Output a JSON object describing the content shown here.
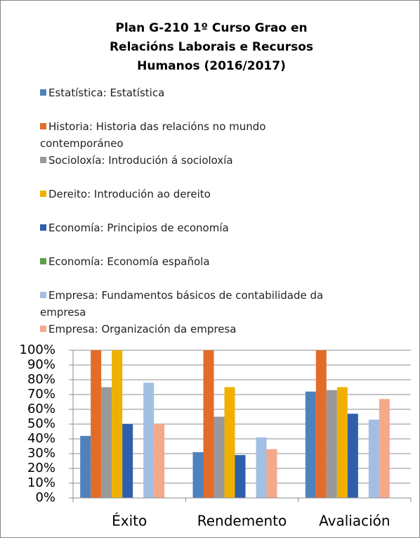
{
  "chart_data": {
    "type": "bar",
    "title": "Plan G-210 1º Curso Grao en Relacións Laborais e Recursos Humanos (2016/2017)",
    "categories": [
      "Éxito",
      "Rendemento",
      "Avaliación"
    ],
    "series": [
      {
        "name": "Estatística: Estatística",
        "color": "#4f81bd",
        "values": [
          42,
          31,
          72
        ]
      },
      {
        "name": "Historia: Historia das relacións no mundo contemporáneo",
        "color": "#e36c2a",
        "values": [
          100,
          100,
          100
        ]
      },
      {
        "name": "Socioloxía: Introdución á socioloxía",
        "color": "#999999",
        "values": [
          75,
          55,
          73
        ]
      },
      {
        "name": "Dereito: Introdución ao dereito",
        "color": "#f0b000",
        "values": [
          100,
          75,
          75
        ]
      },
      {
        "name": "Economía: Principios de economía",
        "color": "#2f5eab",
        "values": [
          50,
          29,
          57
        ]
      },
      {
        "name": "Economía: Economía española",
        "color": "#5ea046",
        "values": [
          0,
          0,
          0
        ]
      },
      {
        "name": "Empresa: Fundamentos básicos de contabilidade da empresa",
        "color": "#a2bfe3",
        "values": [
          78,
          41,
          53
        ]
      },
      {
        "name": "Empresa: Organización da empresa",
        "color": "#f5a98b",
        "values": [
          50,
          33,
          67
        ]
      }
    ],
    "ylim": [
      0,
      100
    ],
    "yticks": [
      {
        "value": 0,
        "label": "0%"
      },
      {
        "value": 10,
        "label": "10%"
      },
      {
        "value": 20,
        "label": "20%"
      },
      {
        "value": 30,
        "label": "30%"
      },
      {
        "value": 40,
        "label": "40%"
      },
      {
        "value": 50,
        "label": "50%"
      },
      {
        "value": 60,
        "label": "60%"
      },
      {
        "value": 70,
        "label": "70%"
      },
      {
        "value": 80,
        "label": "80%"
      },
      {
        "value": 90,
        "label": "90%"
      },
      {
        "value": 100,
        "label": "100%"
      }
    ],
    "grid": true,
    "legend": "top"
  }
}
